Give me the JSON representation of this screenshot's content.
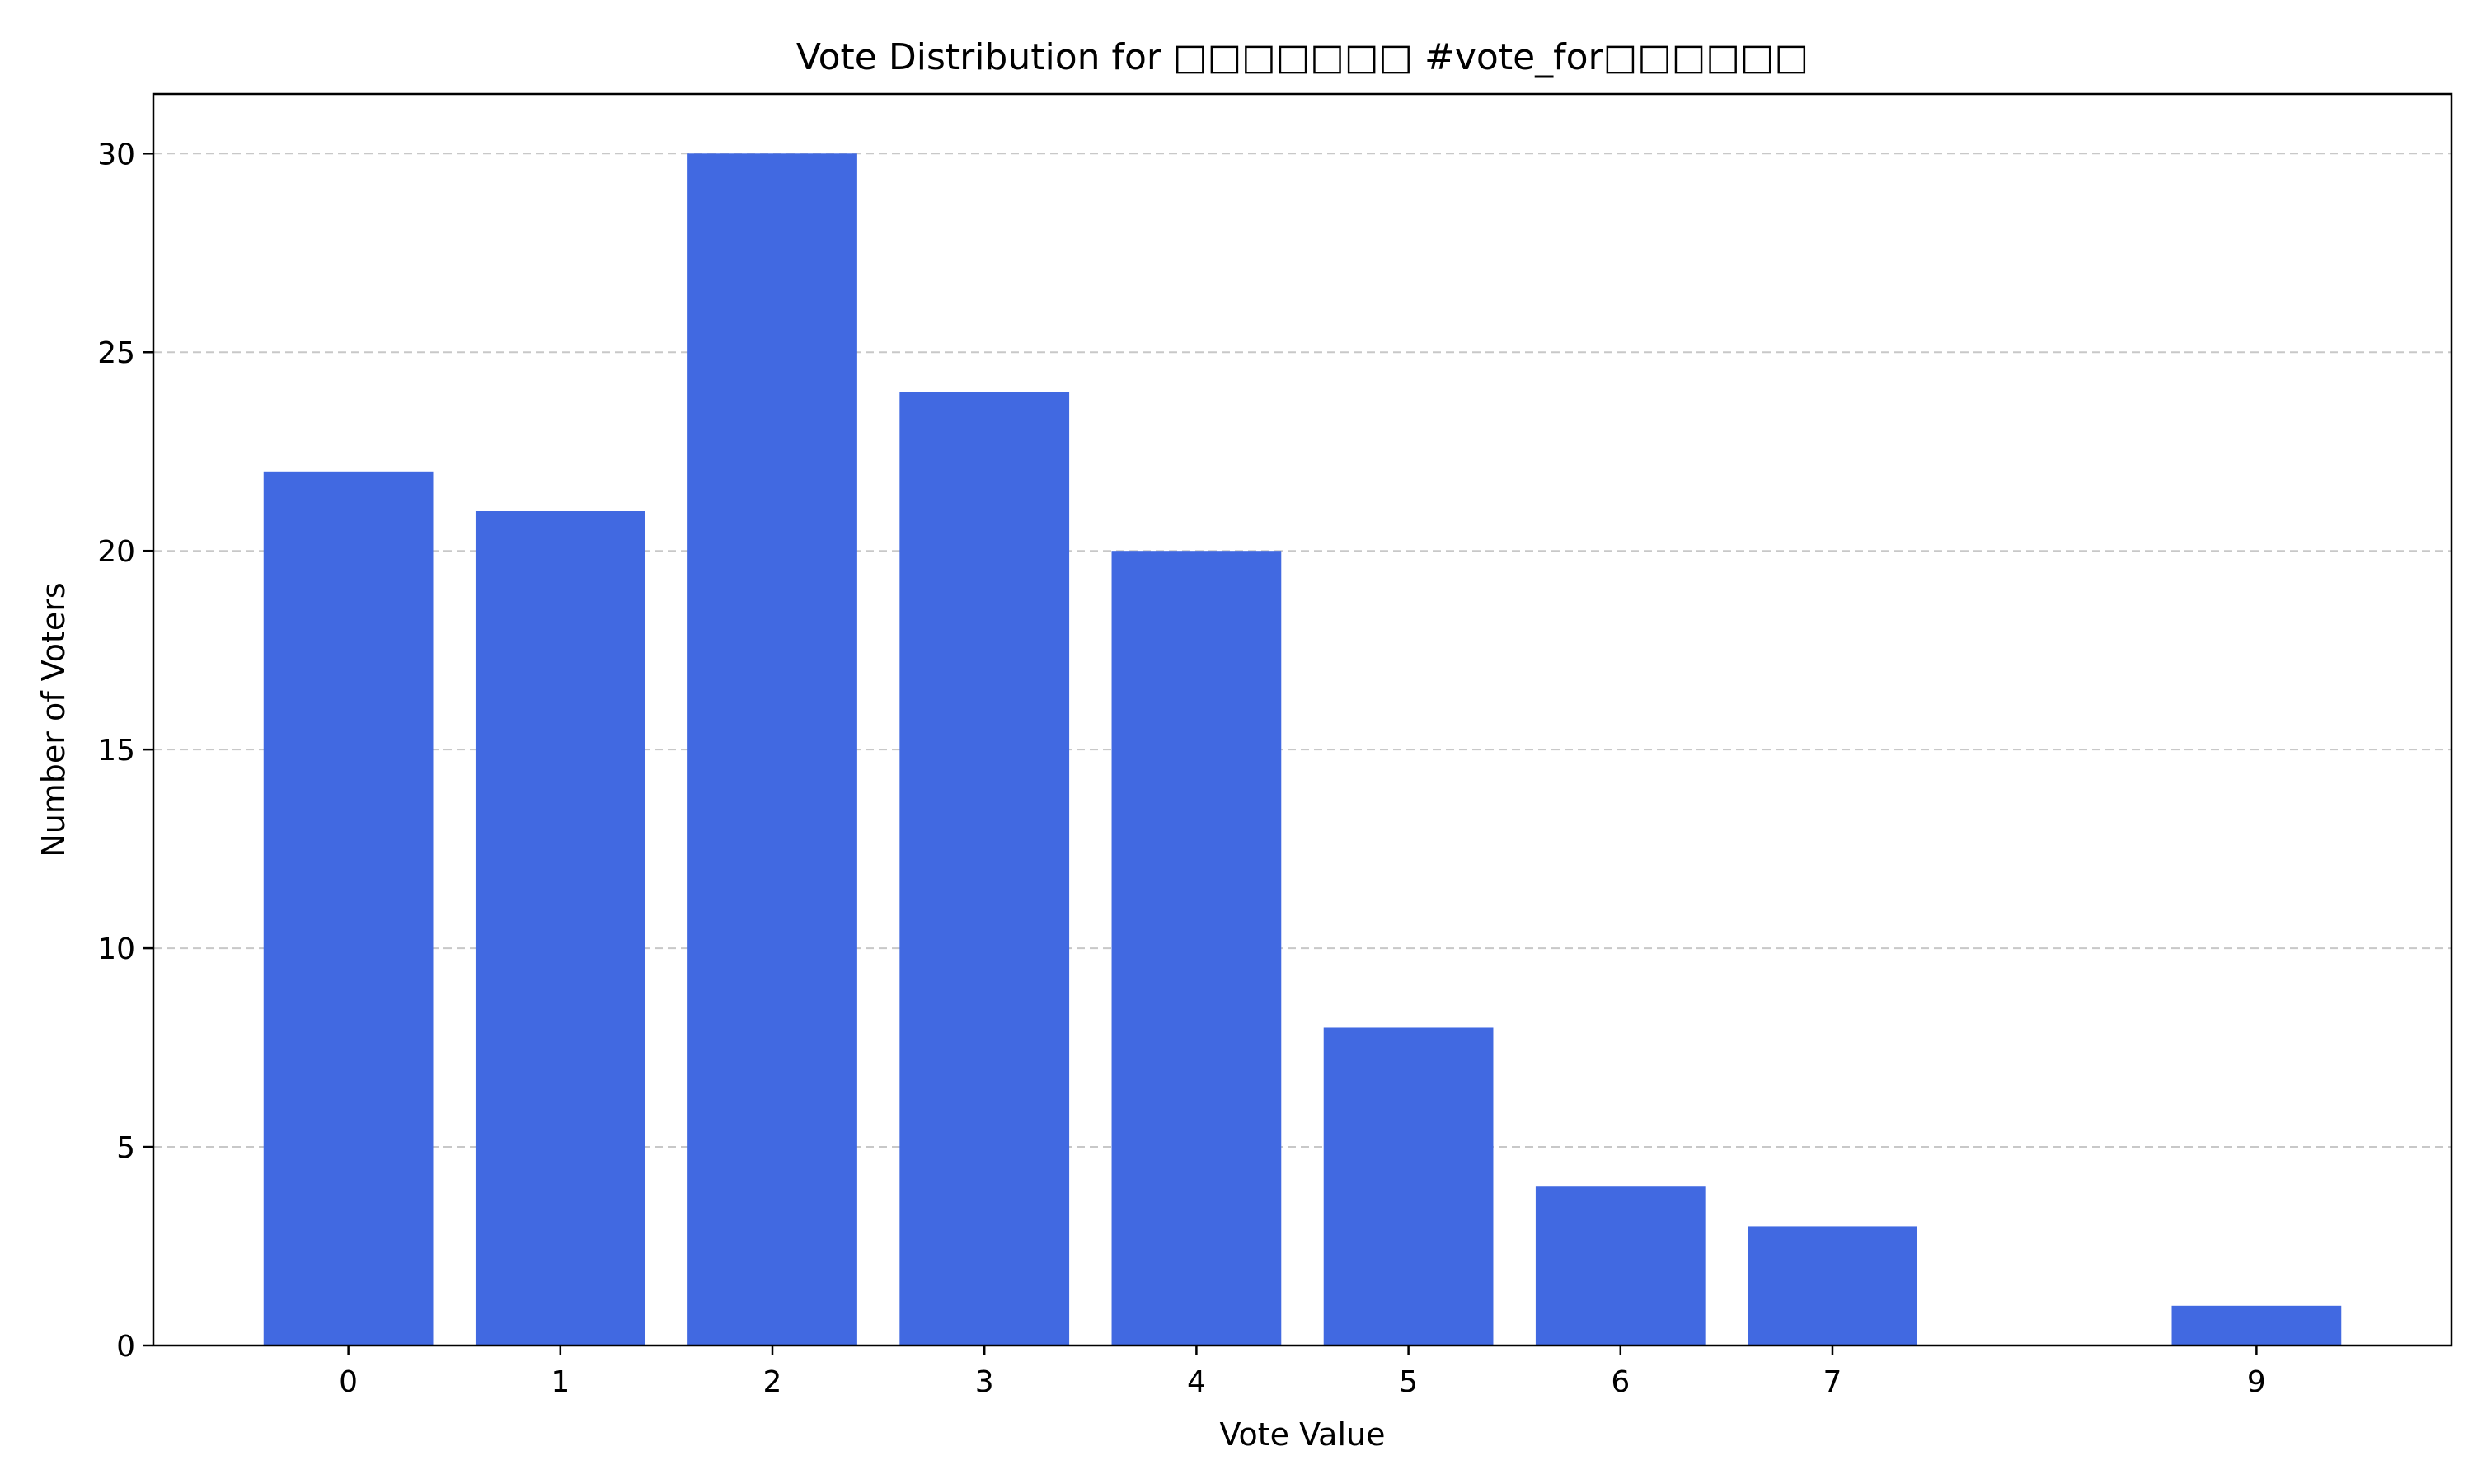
{
  "chart_data": {
    "type": "bar",
    "title": "Vote Distribution for □□□□□□□ #vote_for□□□□□□",
    "xlabel": "Vote Value",
    "ylabel": "Number of Voters",
    "x": [
      0,
      1,
      2,
      3,
      4,
      5,
      6,
      7,
      9
    ],
    "values": [
      22,
      21,
      30,
      24,
      20,
      8,
      4,
      3,
      1
    ],
    "xticks": [
      0,
      1,
      2,
      3,
      4,
      5,
      6,
      7,
      9
    ],
    "yticks": [
      0,
      5,
      10,
      15,
      20,
      25,
      30
    ],
    "xlim": [
      -0.92,
      9.92
    ],
    "ylim": [
      0,
      31.5
    ],
    "grid": "y-dashed",
    "legend": "none",
    "bar_color": "#4169e1",
    "grid_color": "#c8c8c8"
  }
}
